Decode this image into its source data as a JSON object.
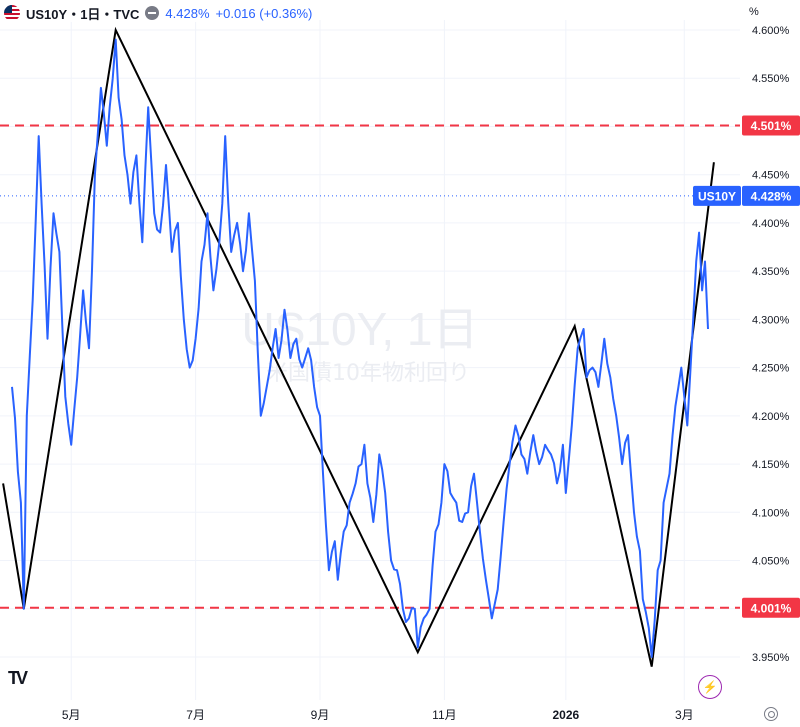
{
  "header": {
    "title": "US10Y・1日・TVC",
    "price": "4.428%",
    "change": "+0.016 (+0.36%)",
    "flag_icon": "us-flag-icon",
    "toggle_icon": "minus-circle-icon"
  },
  "axis_unit": "%",
  "watermark": {
    "line1": "US10Y, 1日",
    "line2": "米国債10年物利回り"
  },
  "colors": {
    "series": "#2962ff",
    "zigzag": "#000000",
    "level": "#f23645",
    "grid": "#f0f3fa",
    "price_tag": "#2962ff"
  },
  "chart_data": {
    "type": "line",
    "symbol": "US10Y",
    "interval": "1日",
    "ylim": [
      3.935,
      4.605
    ],
    "y_ticks": [
      "4.600%",
      "4.550%",
      "4.500%",
      "4.450%",
      "4.400%",
      "4.350%",
      "4.300%",
      "4.250%",
      "4.200%",
      "4.150%",
      "4.100%",
      "4.050%",
      "4.000%",
      "3.950%"
    ],
    "y_tick_values": [
      4.6,
      4.55,
      4.5,
      4.45,
      4.4,
      4.35,
      4.3,
      4.25,
      4.2,
      4.15,
      4.1,
      4.05,
      4.0,
      3.95
    ],
    "x_ticks": [
      {
        "label": "5月",
        "index": 20
      },
      {
        "label": "7月",
        "index": 62
      },
      {
        "label": "9月",
        "index": 104
      },
      {
        "label": "11月",
        "index": 146
      },
      {
        "label": "2026",
        "index": 187
      },
      {
        "label": "3月",
        "index": 227
      }
    ],
    "x_bold_tick": "2026",
    "n_points": 248,
    "series": [
      {
        "symbol": "US10Y",
        "anchors": [
          [
            0,
            4.23
          ],
          [
            3,
            4.11
          ],
          [
            4,
            4.0
          ],
          [
            5,
            4.2
          ],
          [
            7,
            4.32
          ],
          [
            9,
            4.49
          ],
          [
            10,
            4.42
          ],
          [
            12,
            4.28
          ],
          [
            14,
            4.41
          ],
          [
            16,
            4.37
          ],
          [
            18,
            4.22
          ],
          [
            20,
            4.17
          ],
          [
            22,
            4.24
          ],
          [
            24,
            4.33
          ],
          [
            26,
            4.27
          ],
          [
            28,
            4.45
          ],
          [
            30,
            4.54
          ],
          [
            32,
            4.48
          ],
          [
            33,
            4.52
          ],
          [
            35,
            4.59
          ],
          [
            36,
            4.53
          ],
          [
            38,
            4.47
          ],
          [
            40,
            4.42
          ],
          [
            42,
            4.47
          ],
          [
            44,
            4.38
          ],
          [
            46,
            4.52
          ],
          [
            48,
            4.41
          ],
          [
            50,
            4.39
          ],
          [
            52,
            4.46
          ],
          [
            54,
            4.37
          ],
          [
            56,
            4.4
          ],
          [
            58,
            4.3
          ],
          [
            60,
            4.25
          ],
          [
            62,
            4.28
          ],
          [
            64,
            4.36
          ],
          [
            66,
            4.41
          ],
          [
            68,
            4.33
          ],
          [
            70,
            4.38
          ],
          [
            71,
            4.42
          ],
          [
            72,
            4.49
          ],
          [
            74,
            4.37
          ],
          [
            76,
            4.4
          ],
          [
            78,
            4.35
          ],
          [
            80,
            4.41
          ],
          [
            82,
            4.34
          ],
          [
            84,
            4.2
          ],
          [
            86,
            4.23
          ],
          [
            88,
            4.27
          ],
          [
            89,
            4.29
          ],
          [
            90,
            4.26
          ],
          [
            92,
            4.31
          ],
          [
            94,
            4.26
          ],
          [
            96,
            4.28
          ],
          [
            98,
            4.25
          ],
          [
            100,
            4.27
          ],
          [
            102,
            4.23
          ],
          [
            104,
            4.2
          ],
          [
            105,
            4.14
          ],
          [
            107,
            4.04
          ],
          [
            109,
            4.07
          ],
          [
            110,
            4.03
          ],
          [
            112,
            4.08
          ],
          [
            114,
            4.11
          ],
          [
            116,
            4.13
          ],
          [
            118,
            4.15
          ],
          [
            119,
            4.17
          ],
          [
            120,
            4.13
          ],
          [
            122,
            4.09
          ],
          [
            124,
            4.16
          ],
          [
            126,
            4.12
          ],
          [
            128,
            4.05
          ],
          [
            130,
            4.04
          ],
          [
            132,
            4.0
          ],
          [
            134,
            3.99
          ],
          [
            136,
            4.0
          ],
          [
            137,
            3.96
          ],
          [
            139,
            3.99
          ],
          [
            141,
            4.0
          ],
          [
            143,
            4.08
          ],
          [
            145,
            4.11
          ],
          [
            146,
            4.15
          ],
          [
            148,
            4.12
          ],
          [
            150,
            4.11
          ],
          [
            152,
            4.09
          ],
          [
            154,
            4.1
          ],
          [
            156,
            4.14
          ],
          [
            158,
            4.08
          ],
          [
            160,
            4.03
          ],
          [
            162,
            3.99
          ],
          [
            164,
            4.02
          ],
          [
            166,
            4.09
          ],
          [
            168,
            4.15
          ],
          [
            170,
            4.19
          ],
          [
            172,
            4.16
          ],
          [
            174,
            4.14
          ],
          [
            176,
            4.18
          ],
          [
            178,
            4.15
          ],
          [
            180,
            4.17
          ],
          [
            182,
            4.16
          ],
          [
            184,
            4.13
          ],
          [
            186,
            4.17
          ],
          [
            187,
            4.12
          ],
          [
            189,
            4.19
          ],
          [
            191,
            4.27
          ],
          [
            193,
            4.29
          ],
          [
            194,
            4.24
          ],
          [
            196,
            4.25
          ],
          [
            198,
            4.23
          ],
          [
            200,
            4.28
          ],
          [
            202,
            4.24
          ],
          [
            204,
            4.2
          ],
          [
            206,
            4.15
          ],
          [
            208,
            4.18
          ],
          [
            210,
            4.1
          ],
          [
            212,
            4.06
          ],
          [
            213,
            4.01
          ],
          [
            215,
            3.98
          ],
          [
            216,
            3.95
          ],
          [
            218,
            4.04
          ],
          [
            219,
            4.05
          ],
          [
            220,
            4.11
          ],
          [
            222,
            4.14
          ],
          [
            224,
            4.21
          ],
          [
            226,
            4.25
          ],
          [
            228,
            4.19
          ],
          [
            230,
            4.3
          ],
          [
            231,
            4.36
          ],
          [
            232,
            4.39
          ],
          [
            233,
            4.33
          ],
          [
            234,
            4.36
          ],
          [
            235,
            4.29
          ]
        ]
      }
    ],
    "zigzag": [
      [
        -3,
        4.13
      ],
      [
        4,
        4.0
      ],
      [
        35,
        4.6
      ],
      [
        137,
        3.955
      ],
      [
        190,
        4.293
      ],
      [
        216,
        3.94
      ],
      [
        237,
        4.463
      ]
    ],
    "levels": [
      {
        "value": 4.501,
        "label": "4.501%"
      },
      {
        "value": 4.001,
        "label": "4.001%"
      }
    ],
    "last_price": {
      "value": 4.428,
      "label": "4.428%",
      "symbol": "US10Y"
    }
  }
}
